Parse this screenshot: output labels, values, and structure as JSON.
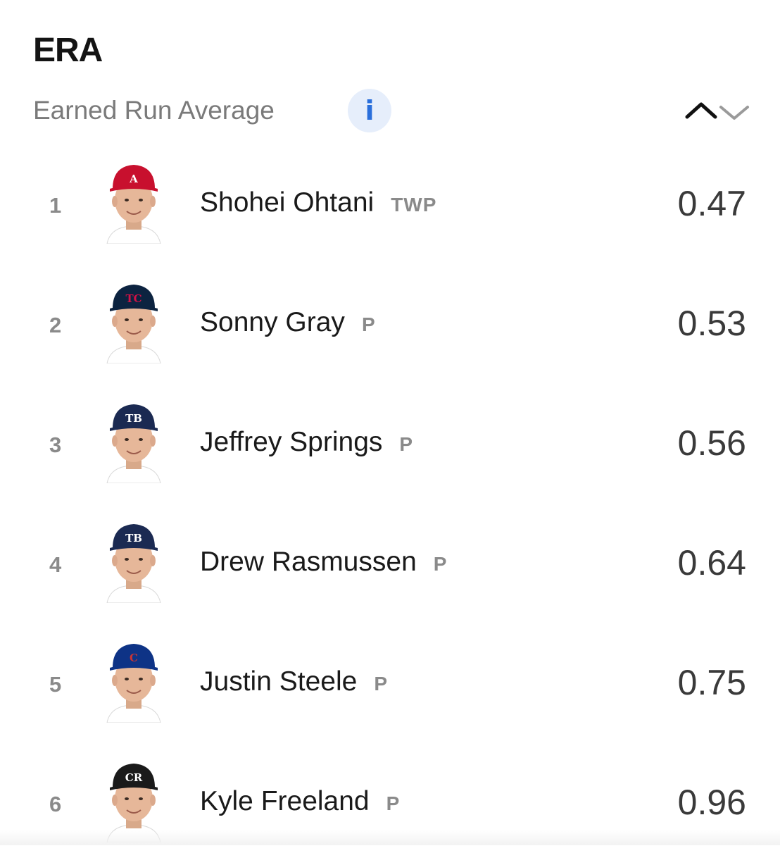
{
  "header": {
    "title": "ERA",
    "subtitle": "Earned Run Average",
    "info_icon": "i"
  },
  "colors": {
    "accent": "#2a6fdb",
    "info_bg": "#e6eefb"
  },
  "players": [
    {
      "rank": "1",
      "name": "Shohei Ohtani",
      "position": "TWP",
      "value": "0.47",
      "team_icon": "angels-cap-icon",
      "cap_color": "#c8102e",
      "cap_logo": "A",
      "logo_color": "#ffffff"
    },
    {
      "rank": "2",
      "name": "Sonny Gray",
      "position": "P",
      "value": "0.53",
      "team_icon": "twins-cap-icon",
      "cap_color": "#0c2340",
      "cap_logo": "TC",
      "logo_color": "#d31145"
    },
    {
      "rank": "3",
      "name": "Jeffrey Springs",
      "position": "P",
      "value": "0.56",
      "team_icon": "rays-cap-icon",
      "cap_color": "#1b2a52",
      "cap_logo": "TB",
      "logo_color": "#ffffff"
    },
    {
      "rank": "4",
      "name": "Drew Rasmussen",
      "position": "P",
      "value": "0.64",
      "team_icon": "rays-cap-icon",
      "cap_color": "#1b2a52",
      "cap_logo": "TB",
      "logo_color": "#ffffff"
    },
    {
      "rank": "5",
      "name": "Justin Steele",
      "position": "P",
      "value": "0.75",
      "team_icon": "cubs-cap-icon",
      "cap_color": "#0e3386",
      "cap_logo": "C",
      "logo_color": "#cc3433"
    },
    {
      "rank": "6",
      "name": "Kyle Freeland",
      "position": "P",
      "value": "0.96",
      "team_icon": "rockies-cap-icon",
      "cap_color": "#1a1a1a",
      "cap_logo": "CR",
      "logo_color": "#ffffff"
    }
  ]
}
